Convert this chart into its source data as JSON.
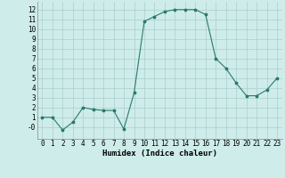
{
  "x": [
    0,
    1,
    2,
    3,
    4,
    5,
    6,
    7,
    8,
    9,
    10,
    11,
    12,
    13,
    14,
    15,
    16,
    17,
    18,
    19,
    20,
    21,
    22,
    23
  ],
  "y": [
    1,
    1,
    -0.3,
    0.5,
    2,
    1.8,
    1.7,
    1.7,
    -0.2,
    3.5,
    10.8,
    11.3,
    11.8,
    12.0,
    12.0,
    12.0,
    11.5,
    7.0,
    6.0,
    4.5,
    3.2,
    3.2,
    3.8,
    5.0
  ],
  "xlabel": "Humidex (Indice chaleur)",
  "line_color": "#2a7a6e",
  "marker": "*",
  "marker_size": 2.5,
  "bg_color": "#ceecea",
  "grid_color": "#aacfcc",
  "ylim": [
    -1.2,
    12.8
  ],
  "xlim": [
    -0.5,
    23.5
  ],
  "yticks": [
    0,
    1,
    2,
    3,
    4,
    5,
    6,
    7,
    8,
    9,
    10,
    11,
    12
  ],
  "ytick_labels": [
    "-0",
    "1",
    "2",
    "3",
    "4",
    "5",
    "6",
    "7",
    "8",
    "9",
    "10",
    "11",
    "12"
  ],
  "xticks": [
    0,
    1,
    2,
    3,
    4,
    5,
    6,
    7,
    8,
    9,
    10,
    11,
    12,
    13,
    14,
    15,
    16,
    17,
    18,
    19,
    20,
    21,
    22,
    23
  ],
  "tick_fontsize": 5.5,
  "xlabel_fontsize": 6.5,
  "linewidth": 0.8
}
